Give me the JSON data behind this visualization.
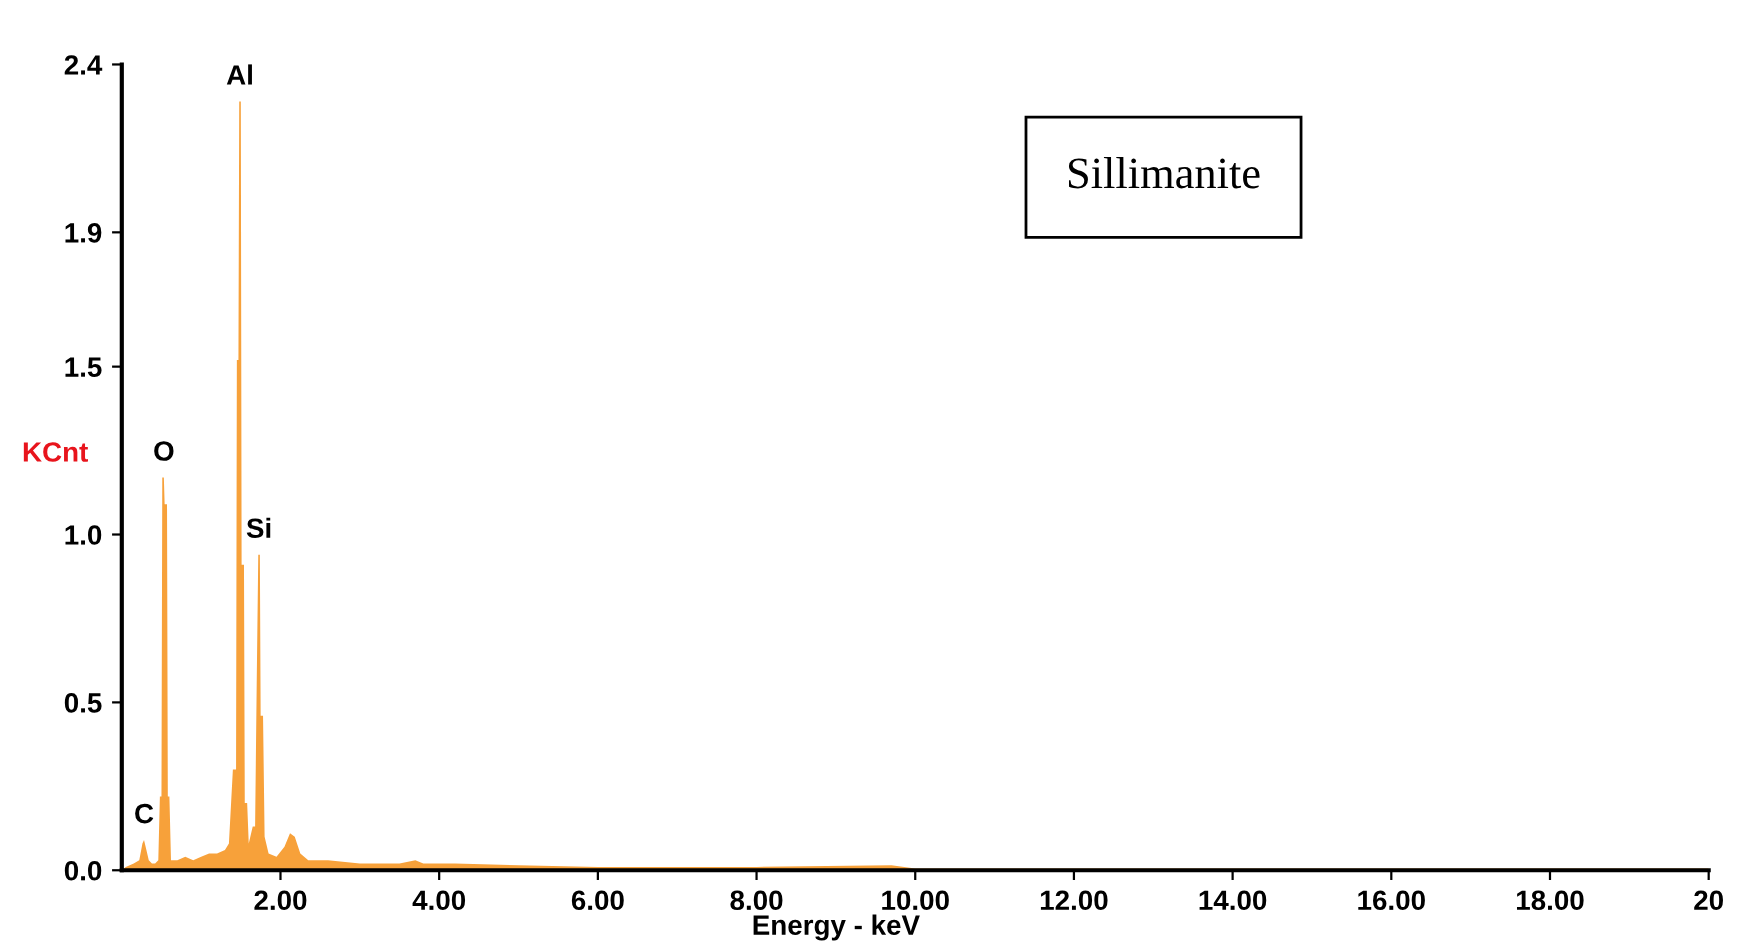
{
  "chart_data": {
    "type": "area",
    "xlabel": "Energy - keV",
    "ylabel": "KCnt",
    "x": [
      0.0,
      0.05,
      0.15,
      0.22,
      0.26,
      0.28,
      0.31,
      0.34,
      0.38,
      0.42,
      0.46,
      0.48,
      0.5,
      0.51,
      0.53,
      0.54,
      0.57,
      0.58,
      0.6,
      0.62,
      0.7,
      0.8,
      0.9,
      1.0,
      1.1,
      1.2,
      1.3,
      1.35,
      1.4,
      1.44,
      1.45,
      1.47,
      1.48,
      1.5,
      1.51,
      1.54,
      1.55,
      1.58,
      1.6,
      1.65,
      1.68,
      1.7,
      1.72,
      1.74,
      1.75,
      1.78,
      1.8,
      1.85,
      1.95,
      2.05,
      2.12,
      2.18,
      2.25,
      2.35,
      2.6,
      3.0,
      3.5,
      3.7,
      3.8,
      4.2,
      5.0,
      6.0,
      8.0,
      9.7,
      10.0,
      20.0
    ],
    "series": [
      {
        "color": "#f7a13a",
        "values": [
          0.0,
          0.01,
          0.02,
          0.03,
          0.08,
          0.09,
          0.06,
          0.03,
          0.02,
          0.02,
          0.03,
          0.22,
          0.22,
          1.17,
          1.17,
          1.09,
          1.09,
          0.22,
          0.22,
          0.03,
          0.03,
          0.04,
          0.03,
          0.04,
          0.05,
          0.05,
          0.06,
          0.08,
          0.3,
          0.3,
          1.52,
          1.52,
          2.29,
          2.29,
          0.91,
          0.91,
          0.2,
          0.2,
          0.08,
          0.13,
          0.13,
          0.55,
          0.94,
          0.94,
          0.46,
          0.46,
          0.1,
          0.05,
          0.04,
          0.07,
          0.11,
          0.1,
          0.05,
          0.03,
          0.03,
          0.02,
          0.02,
          0.03,
          0.02,
          0.02,
          0.015,
          0.01,
          0.01,
          0.015,
          0.005,
          0.005
        ]
      }
    ],
    "xlim": [
      0,
      20
    ],
    "xticks": [
      {
        "value": 2,
        "label": "2.00"
      },
      {
        "value": 4,
        "label": "4.00"
      },
      {
        "value": 6,
        "label": "6.00"
      },
      {
        "value": 8,
        "label": "8.00"
      },
      {
        "value": 10,
        "label": "10.00"
      },
      {
        "value": 12,
        "label": "12.00"
      },
      {
        "value": 14,
        "label": "14.00"
      },
      {
        "value": 16,
        "label": "16.00"
      },
      {
        "value": 18,
        "label": "18.00"
      },
      {
        "value": 20,
        "label": "20"
      }
    ],
    "ylim": [
      0,
      2.4
    ],
    "yticks": [
      {
        "value": 0,
        "label": "0.0"
      },
      {
        "value": 0.5,
        "label": "0.5"
      },
      {
        "value": 1.0,
        "label": "1.0"
      },
      {
        "value": 1.5,
        "label": "1.5"
      },
      {
        "value": 1.9,
        "label": "1.9"
      },
      {
        "value": 2.4,
        "label": "2.4"
      }
    ],
    "annotations": [
      {
        "text": "C",
        "x": 0.28,
        "y": 0.09
      },
      {
        "text": "O",
        "x": 0.53,
        "y": 1.17
      },
      {
        "text": "Al",
        "x": 1.49,
        "y": 2.29
      },
      {
        "text": "Si",
        "x": 1.73,
        "y": 0.94
      },
      "Sillimanite"
    ],
    "grid": false
  }
}
